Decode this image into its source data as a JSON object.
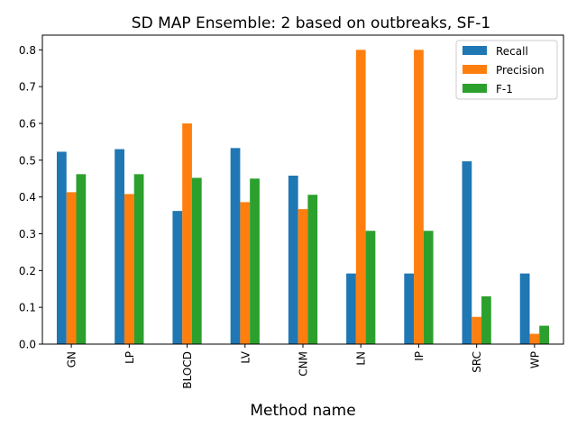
{
  "chart_data": {
    "type": "bar",
    "title": "SD MAP Ensemble: 2 based on outbreaks, SF-1",
    "xlabel": "Method name",
    "ylabel": "",
    "ylim": [
      0,
      0.84
    ],
    "yticks": [
      "0.0",
      "0.1",
      "0.2",
      "0.3",
      "0.4",
      "0.5",
      "0.6",
      "0.7",
      "0.8"
    ],
    "categories": [
      "GN",
      "LP",
      "BLOCD",
      "LV",
      "CNM",
      "LN",
      "IP",
      "SRC",
      "WP"
    ],
    "legend_position": "top-right",
    "grid": false,
    "series": [
      {
        "name": "Recall",
        "color": "#1f77b4",
        "values": [
          0.523,
          0.53,
          0.362,
          0.533,
          0.458,
          0.192,
          0.192,
          0.497,
          0.192
        ]
      },
      {
        "name": "Precision",
        "color": "#ff7f0e",
        "values": [
          0.413,
          0.408,
          0.6,
          0.386,
          0.367,
          0.8,
          0.8,
          0.074,
          0.028
        ]
      },
      {
        "name": "F-1",
        "color": "#2ca02c",
        "values": [
          0.462,
          0.462,
          0.452,
          0.45,
          0.406,
          0.308,
          0.308,
          0.13,
          0.05
        ]
      }
    ]
  }
}
